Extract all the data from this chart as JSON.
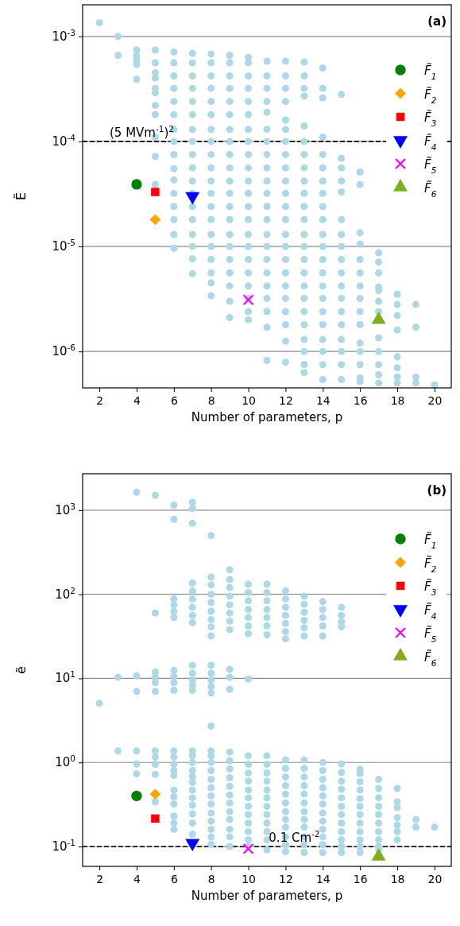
{
  "chart_data": [
    {
      "type": "scatter",
      "title": "(a)",
      "xlabel": "Number of parameters, p",
      "ylabel": "Ẽ",
      "log": "y",
      "grid": "y",
      "legend": "top right",
      "xlim": [
        1.1,
        20.9
      ],
      "xticks": [
        2,
        4,
        6,
        8,
        10,
        12,
        14,
        16,
        18,
        20
      ],
      "ylim": [
        4.5e-07,
        0.002
      ],
      "yticks": [
        {
          "value": 1e-06,
          "label": "10$^{-6}$"
        },
        {
          "value": 1e-05,
          "label": "10$^{-5}$"
        },
        {
          "value": 0.0001,
          "label": "10$^{-4}$"
        },
        {
          "value": 0.001,
          "label": "10$^{-3}$"
        }
      ],
      "ref_lines": [
        {
          "axis": "y",
          "value": 0.0001,
          "label": "(5 MVm$^{-1}$)$^{2}$",
          "color": "#000000",
          "line_style": "dashed"
        }
      ],
      "series": [
        {
          "color": "#add8e6",
          "marker": "circle",
          "x": [
            2,
            3,
            3,
            4,
            4,
            4,
            4,
            4,
            5,
            5,
            5,
            5,
            5,
            5,
            5,
            5,
            5,
            5,
            5,
            6,
            6,
            6,
            6,
            6,
            6,
            6,
            6,
            6,
            6,
            6,
            6,
            6,
            6,
            6,
            6,
            7,
            7,
            7,
            7,
            7,
            7,
            7,
            7,
            7,
            7,
            7,
            7,
            7,
            7,
            7,
            7,
            7,
            7,
            8,
            8,
            8,
            8,
            8,
            8,
            8,
            8,
            8,
            8,
            8,
            8,
            8,
            8,
            8,
            8,
            8,
            8,
            8,
            8,
            9,
            9,
            9,
            9,
            9,
            9,
            9,
            9,
            9,
            9,
            9,
            9,
            9,
            9,
            9,
            9,
            9,
            9,
            9,
            9,
            9,
            10,
            10,
            10,
            10,
            10,
            10,
            10,
            10,
            10,
            10,
            10,
            10,
            10,
            10,
            10,
            10,
            10,
            10,
            10,
            10,
            10,
            10,
            11,
            11,
            11,
            11,
            11,
            11,
            11,
            11,
            11,
            11,
            11,
            11,
            11,
            11,
            11,
            11,
            11,
            11,
            11,
            11,
            11,
            11,
            12,
            12,
            12,
            12,
            12,
            12,
            12,
            12,
            12,
            12,
            12,
            12,
            12,
            12,
            12,
            12,
            12,
            12,
            12,
            12,
            12,
            12,
            12,
            13,
            13,
            13,
            13,
            13,
            13,
            13,
            13,
            13,
            13,
            13,
            13,
            13,
            13,
            13,
            13,
            13,
            13,
            13,
            13,
            13,
            13,
            13,
            13,
            14,
            14,
            14,
            14,
            14,
            14,
            14,
            14,
            14,
            14,
            14,
            14,
            14,
            14,
            14,
            14,
            14,
            14,
            14,
            14,
            14,
            14,
            15,
            15,
            15,
            15,
            15,
            15,
            15,
            15,
            15,
            15,
            15,
            15,
            15,
            15,
            15,
            15,
            15,
            15,
            16,
            16,
            16,
            16,
            16,
            16,
            16,
            16,
            16,
            16,
            16,
            16,
            16,
            16,
            16,
            17,
            17,
            17,
            17,
            17,
            17,
            17,
            17,
            17,
            17,
            17,
            17,
            18,
            18,
            18,
            18,
            18,
            18,
            18,
            18,
            19,
            19,
            19,
            19,
            20
          ],
          "values": [
            0.00135,
            0.001,
            0.00066,
            0.00074,
            0.00065,
            0.0006,
            0.00054,
            0.00039,
            0.00074,
            0.00056,
            0.00045,
            0.0004,
            0.00032,
            0.00029,
            0.00022,
            0.00018,
            0.00011,
            7.2e-05,
            3.9e-05,
            0.00071,
            0.00056,
            0.00042,
            0.00032,
            0.00024,
            0.00018,
            0.00013,
            0.0001,
            7.5e-05,
            5.5e-05,
            4.3e-05,
            3.2e-05,
            2.4e-05,
            1.8e-05,
            1.3e-05,
            9.6e-06,
            0.00069,
            0.00056,
            0.00042,
            0.00032,
            0.00024,
            0.00018,
            0.00013,
            0.0001,
            7.5e-05,
            5.6e-05,
            4.2e-05,
            3.2e-05,
            2.4e-05,
            1.8e-05,
            1.3e-05,
            1e-05,
            7.6e-06,
            5.5e-06,
            0.00068,
            0.00056,
            0.00042,
            0.00032,
            0.00024,
            0.00018,
            0.00013,
            0.0001,
            7.5e-05,
            5.6e-05,
            4.2e-05,
            3.2e-05,
            2.4e-05,
            1.8e-05,
            1.3e-05,
            1e-05,
            7.5e-06,
            5.6e-06,
            4.5e-06,
            3.4e-06,
            0.00066,
            0.00056,
            0.00042,
            0.00032,
            0.00024,
            0.00018,
            0.00013,
            0.0001,
            7.5e-05,
            5.6e-05,
            4.2e-05,
            3.2e-05,
            2.4e-05,
            1.8e-05,
            1.3e-05,
            1e-05,
            7.5e-06,
            5.6e-06,
            4.2e-06,
            3e-06,
            2.1e-06,
            0.00063,
            0.00056,
            0.00042,
            0.00032,
            0.00024,
            0.00018,
            0.00013,
            0.0001,
            7.5e-05,
            5.6e-05,
            4.2e-05,
            3.2e-05,
            2.4e-05,
            1.8e-05,
            1.3e-05,
            1e-05,
            7.5e-06,
            5.6e-06,
            4.2e-06,
            3.2e-06,
            2.4e-06,
            2e-06,
            0.00058,
            0.00042,
            0.00032,
            0.00024,
            0.00019,
            0.00013,
            0.0001,
            7.5e-05,
            5.6e-05,
            4.2e-05,
            3.2e-05,
            2.4e-05,
            1.8e-05,
            1.3e-05,
            1e-05,
            7.5e-06,
            5.6e-06,
            4.2e-06,
            3.2e-06,
            2.4e-06,
            1.7e-06,
            8.2e-07,
            0.00058,
            0.00042,
            0.00032,
            0.00024,
            0.00016,
            0.00013,
            0.0001,
            7.5e-05,
            5.6e-05,
            4.2e-05,
            3.2e-05,
            2.4e-05,
            1.8e-05,
            1.3e-05,
            1e-05,
            7.5e-06,
            5.6e-06,
            4.2e-06,
            3.2e-06,
            2.4e-06,
            1.8e-06,
            1.25e-06,
            7.9e-07,
            0.00057,
            0.00042,
            0.00032,
            0.00027,
            0.00014,
            0.0001,
            7.5e-05,
            5.6e-05,
            4.2e-05,
            3.2e-05,
            2.4e-05,
            1.8e-05,
            1.3e-05,
            1e-05,
            7.5e-06,
            5.6e-06,
            4.2e-06,
            3.2e-06,
            2.4e-06,
            1.8e-06,
            1.3e-06,
            1e-06,
            7.5e-07,
            6.3e-07,
            0.0005,
            0.00032,
            0.00026,
            0.00011,
            7.5e-05,
            5.6e-05,
            4.2e-05,
            3.2e-05,
            2.4e-05,
            1.8e-05,
            1.3e-05,
            1e-05,
            7.5e-06,
            5.6e-06,
            4.2e-06,
            3.2e-06,
            2.4e-06,
            1.8e-06,
            1.3e-06,
            1e-06,
            7.5e-07,
            5.4e-07,
            0.00028,
            6.9e-05,
            5.6e-05,
            4.2e-05,
            3.3e-05,
            1.8e-05,
            1.3e-05,
            1e-05,
            7.5e-06,
            5.6e-06,
            4.2e-06,
            3.2e-06,
            2.4e-06,
            1.8e-06,
            1.3e-06,
            1e-06,
            7.5e-07,
            5.4e-07,
            5.1e-05,
            3.9e-05,
            1.35e-05,
            1.05e-05,
            7.5e-06,
            5.6e-06,
            4.2e-06,
            3.2e-06,
            2.4e-06,
            1.8e-06,
            1.2e-06,
            1e-06,
            7.5e-07,
            5.6e-07,
            5.2e-07,
            8.7e-06,
            7.1e-06,
            5.6e-06,
            4.1e-06,
            3.8e-06,
            3e-06,
            2.4e-06,
            1.35e-06,
            1e-06,
            7.5e-07,
            6e-07,
            5e-07,
            3.5e-06,
            2.8e-06,
            2.2e-06,
            1.6e-06,
            8.9e-07,
            7e-07,
            5.7e-07,
            5e-07,
            2.8e-06,
            1.7e-06,
            5.7e-07,
            5e-07,
            4.8e-07
          ]
        },
        {
          "name": "F̃$_{1}$",
          "color": "#008000",
          "marker": "circle",
          "x": [
            4
          ],
          "values": [
            3.9e-05
          ]
        },
        {
          "name": "F̃$_{2}$",
          "color": "#ffa500",
          "marker": "diamond",
          "x": [
            5
          ],
          "values": [
            1.8e-05
          ]
        },
        {
          "name": "F̃$_{3}$",
          "color": "#ff0000",
          "marker": "square",
          "x": [
            5
          ],
          "values": [
            3.3e-05
          ]
        },
        {
          "name": "F̃$_{4}$",
          "color": "#0000ff",
          "marker": "triangle-down",
          "x": [
            7
          ],
          "values": [
            3e-05
          ]
        },
        {
          "name": "F̃$_{5}$",
          "color": "#ff00ff",
          "marker": "cross",
          "x": [
            10
          ],
          "values": [
            3.1e-06
          ]
        },
        {
          "name": "F̃$_{6}$",
          "color": "#7fae1f",
          "marker": "triangle",
          "x": [
            17
          ],
          "values": [
            2e-06
          ]
        }
      ]
    },
    {
      "type": "scatter",
      "title": "(b)",
      "xlabel": "Number of parameters, p",
      "ylabel": "ẽ",
      "log": "y",
      "grid": "y",
      "legend": "top right",
      "xlim": [
        1.1,
        20.9
      ],
      "xticks": [
        2,
        4,
        6,
        8,
        10,
        12,
        14,
        16,
        18,
        20
      ],
      "ylim": [
        0.058,
        2720
      ],
      "yticks": [
        {
          "value": 0.1,
          "label": "10$^{-1}$"
        },
        {
          "value": 1,
          "label": "10$^{0}$"
        },
        {
          "value": 10,
          "label": "10$^{1}$"
        },
        {
          "value": 100,
          "label": "10$^{2}$"
        },
        {
          "value": 1000,
          "label": "10$^{3}$"
        }
      ],
      "ref_lines": [
        {
          "axis": "y",
          "value": 0.1,
          "label": "0.1 Cm$^{-2}$",
          "color": "#000000",
          "line_style": "dashed"
        }
      ],
      "series": [
        {
          "color": "#add8e6",
          "marker": "circle",
          "x": [
            2,
            3,
            3,
            4,
            4,
            4,
            4,
            4,
            4,
            5,
            5,
            5,
            5,
            5,
            5,
            5,
            5,
            5,
            5,
            5,
            6,
            6,
            6,
            6,
            6,
            6,
            6,
            6,
            6,
            6,
            6,
            6,
            6,
            6,
            6,
            6,
            6,
            6,
            6,
            6,
            6,
            7,
            7,
            7,
            7,
            7,
            7,
            7,
            7,
            7,
            7,
            7,
            7,
            7,
            7,
            7,
            7,
            7,
            7,
            7,
            7,
            7,
            7,
            7,
            7,
            7,
            7,
            8,
            8,
            8,
            8,
            8,
            8,
            8,
            8,
            8,
            8,
            8,
            8,
            8,
            8,
            8,
            8,
            8,
            8,
            8,
            8,
            8,
            8,
            8,
            8,
            8,
            8,
            8,
            8,
            9,
            9,
            9,
            9,
            9,
            9,
            9,
            9,
            9,
            9,
            9,
            9,
            9,
            9,
            9,
            9,
            9,
            9,
            9,
            9,
            9,
            9,
            9,
            10,
            10,
            10,
            10,
            10,
            10,
            10,
            10,
            10,
            10,
            10,
            10,
            10,
            10,
            10,
            10,
            10,
            10,
            10,
            10,
            11,
            11,
            11,
            11,
            11,
            11,
            11,
            11,
            11,
            11,
            11,
            11,
            11,
            11,
            11,
            11,
            11,
            11,
            11,
            12,
            12,
            12,
            12,
            12,
            12,
            12,
            12,
            12,
            12,
            12,
            12,
            12,
            12,
            12,
            12,
            12,
            12,
            12,
            13,
            13,
            13,
            13,
            13,
            13,
            13,
            13,
            13,
            13,
            13,
            13,
            13,
            13,
            13,
            13,
            13,
            13,
            14,
            14,
            14,
            14,
            14,
            14,
            14,
            14,
            14,
            14,
            14,
            14,
            14,
            14,
            14,
            14,
            14,
            15,
            15,
            15,
            15,
            15,
            15,
            15,
            15,
            15,
            15,
            15,
            15,
            15,
            15,
            15,
            15,
            16,
            16,
            16,
            16,
            16,
            16,
            16,
            16,
            16,
            16,
            16,
            16,
            17,
            17,
            17,
            17,
            17,
            17,
            17,
            17,
            17,
            17,
            18,
            18,
            18,
            18,
            18,
            18,
            18,
            19,
            19,
            20
          ],
          "values": [
            5.05,
            10.3,
            1.37,
            1640,
            10.7,
            7.0,
            1.37,
            0.955,
            0.73,
            1500,
            60,
            11.9,
            10.3,
            8.9,
            7.0,
            1.37,
            1.16,
            0.95,
            0.72,
            0.34,
            1150,
            780,
            88,
            75,
            63,
            53,
            12.4,
            10.5,
            8.9,
            7.2,
            1.37,
            1.16,
            0.95,
            0.8,
            0.7,
            0.47,
            0.39,
            0.32,
            0.23,
            0.19,
            0.16,
            1250,
            1050,
            700,
            136,
            110,
            88,
            70,
            56,
            46,
            14.3,
            11.5,
            9.5,
            8.3,
            7.2,
            1.37,
            1.2,
            1.0,
            0.8,
            0.68,
            0.58,
            0.47,
            0.38,
            0.31,
            0.245,
            0.19,
            0.14,
            500,
            160,
            130,
            100,
            80,
            63,
            50,
            41,
            32,
            14.3,
            11.5,
            9.5,
            8.0,
            6.7,
            2.7,
            1.37,
            1.2,
            1.0,
            0.8,
            0.63,
            0.5,
            0.4,
            0.32,
            0.25,
            0.2,
            0.16,
            0.13,
            0.106,
            196,
            150,
            120,
            95,
            75,
            60,
            48,
            38,
            12.8,
            10.3,
            7.4,
            1.33,
            1.05,
            0.84,
            0.66,
            0.52,
            0.41,
            0.33,
            0.26,
            0.21,
            0.16,
            0.13,
            0.1,
            132,
            105,
            84,
            66,
            53,
            42,
            34,
            9.8,
            1.2,
            0.95,
            0.75,
            0.6,
            0.47,
            0.38,
            0.3,
            0.24,
            0.19,
            0.15,
            0.12,
            0.1,
            132,
            105,
            84,
            66,
            53,
            42,
            33,
            1.2,
            0.95,
            0.75,
            0.6,
            0.47,
            0.38,
            0.3,
            0.24,
            0.19,
            0.15,
            0.12,
            0.091,
            110,
            88,
            70,
            56,
            45,
            36,
            29.5,
            1.07,
            0.85,
            0.67,
            0.53,
            0.42,
            0.33,
            0.26,
            0.21,
            0.17,
            0.13,
            0.105,
            0.087,
            95,
            76,
            61,
            49,
            40,
            32,
            1.07,
            0.85,
            0.67,
            0.53,
            0.42,
            0.33,
            0.26,
            0.21,
            0.17,
            0.13,
            0.105,
            0.085,
            82,
            66,
            53,
            42,
            32,
            1.0,
            0.8,
            0.63,
            0.5,
            0.4,
            0.32,
            0.25,
            0.2,
            0.16,
            0.13,
            0.105,
            0.085,
            70,
            56,
            47,
            41,
            0.96,
            0.76,
            0.6,
            0.48,
            0.38,
            0.3,
            0.24,
            0.19,
            0.15,
            0.12,
            0.1,
            0.085,
            0.83,
            0.74,
            0.59,
            0.47,
            0.37,
            0.3,
            0.24,
            0.19,
            0.15,
            0.12,
            0.1,
            0.085,
            0.63,
            0.49,
            0.38,
            0.3,
            0.24,
            0.19,
            0.15,
            0.12,
            0.1,
            0.091,
            0.49,
            0.34,
            0.29,
            0.22,
            0.18,
            0.15,
            0.12,
            0.21,
            0.17,
            0.17
          ]
        },
        {
          "name": "F̃$_{1}$",
          "color": "#008000",
          "marker": "circle",
          "x": [
            4
          ],
          "values": [
            0.4
          ]
        },
        {
          "name": "F̃$_{2}$",
          "color": "#ffa500",
          "marker": "diamond",
          "x": [
            5
          ],
          "values": [
            0.42
          ]
        },
        {
          "name": "F̃$_{3}$",
          "color": "#ff0000",
          "marker": "square",
          "x": [
            5
          ],
          "values": [
            0.215
          ]
        },
        {
          "name": "F̃$_{4}$",
          "color": "#0000ff",
          "marker": "triangle-down",
          "x": [
            7
          ],
          "values": [
            0.11
          ]
        },
        {
          "name": "F̃$_{5}$",
          "color": "#ff00ff",
          "marker": "cross",
          "x": [
            10
          ],
          "values": [
            0.094
          ]
        },
        {
          "name": "F̃$_{6}$",
          "color": "#7fae1f",
          "marker": "triangle",
          "x": [
            17
          ],
          "values": [
            0.076
          ]
        }
      ]
    }
  ]
}
